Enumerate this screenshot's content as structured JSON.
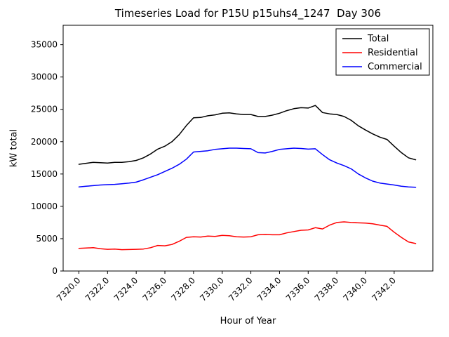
{
  "chart_data": {
    "type": "line",
    "title": "Timeseries Load for P15U p15uhs4_1247  Day 306",
    "xlabel": "Hour of Year",
    "ylabel": "kW total",
    "xlim": [
      7318.9,
      7344.7
    ],
    "ylim": [
      0,
      38000
    ],
    "grid": false,
    "legend_position": "upper right",
    "x_ticks": [
      7320,
      7322,
      7324,
      7326,
      7328,
      7330,
      7332,
      7334,
      7336,
      7338,
      7340,
      7342
    ],
    "x_tick_labels": [
      "7320.0",
      "7322.0",
      "7324.0",
      "7326.0",
      "7328.0",
      "7330.0",
      "7332.0",
      "7334.0",
      "7336.0",
      "7338.0",
      "7340.0",
      "7342.0"
    ],
    "y_ticks": [
      0,
      5000,
      10000,
      15000,
      20000,
      25000,
      30000,
      35000
    ],
    "x": [
      7320.0,
      7320.5,
      7321.0,
      7321.5,
      7322.0,
      7322.5,
      7323.0,
      7323.5,
      7324.0,
      7324.5,
      7325.0,
      7325.5,
      7326.0,
      7326.5,
      7327.0,
      7327.5,
      7328.0,
      7328.5,
      7329.0,
      7329.5,
      7330.0,
      7330.5,
      7331.0,
      7331.5,
      7332.0,
      7332.5,
      7333.0,
      7333.5,
      7334.0,
      7334.5,
      7335.0,
      7335.5,
      7336.0,
      7336.5,
      7337.0,
      7337.5,
      7338.0,
      7338.5,
      7339.0,
      7339.5,
      7340.0,
      7340.5,
      7341.0,
      7341.5,
      7342.0,
      7342.5,
      7343.0,
      7343.5
    ],
    "series": [
      {
        "name": "Total",
        "color": "#000000",
        "values": [
          16500,
          16650,
          16800,
          16750,
          16700,
          16800,
          16800,
          16920,
          17100,
          17500,
          18100,
          18850,
          19300,
          20000,
          21100,
          22500,
          23700,
          23750,
          24000,
          24150,
          24400,
          24450,
          24300,
          24200,
          24200,
          23900,
          23900,
          24100,
          24400,
          24800,
          25100,
          25250,
          25200,
          25600,
          24500,
          24300,
          24200,
          23900,
          23300,
          22450,
          21800,
          21200,
          20700,
          20350,
          19300,
          18300,
          17500,
          17200
        ]
      },
      {
        "name": "Residential",
        "color": "#ff0000",
        "values": [
          3500,
          3550,
          3600,
          3450,
          3350,
          3400,
          3300,
          3320,
          3350,
          3400,
          3600,
          3950,
          3900,
          4100,
          4600,
          5200,
          5300,
          5250,
          5400,
          5350,
          5500,
          5450,
          5300,
          5250,
          5300,
          5600,
          5650,
          5600,
          5600,
          5900,
          6100,
          6300,
          6350,
          6700,
          6500,
          7100,
          7500,
          7600,
          7500,
          7450,
          7400,
          7300,
          7100,
          6900,
          6000,
          5200,
          4500,
          4250
        ]
      },
      {
        "name": "Commercial",
        "color": "#0000ff",
        "values": [
          13000,
          13100,
          13200,
          13300,
          13350,
          13400,
          13500,
          13600,
          13750,
          14100,
          14500,
          14900,
          15400,
          15900,
          16500,
          17300,
          18400,
          18500,
          18600,
          18800,
          18900,
          19000,
          19000,
          18950,
          18900,
          18300,
          18250,
          18500,
          18800,
          18900,
          19000,
          18950,
          18850,
          18900,
          18000,
          17200,
          16700,
          16300,
          15800,
          15000,
          14400,
          13900,
          13600,
          13450,
          13300,
          13100,
          13000,
          12950
        ]
      }
    ]
  }
}
